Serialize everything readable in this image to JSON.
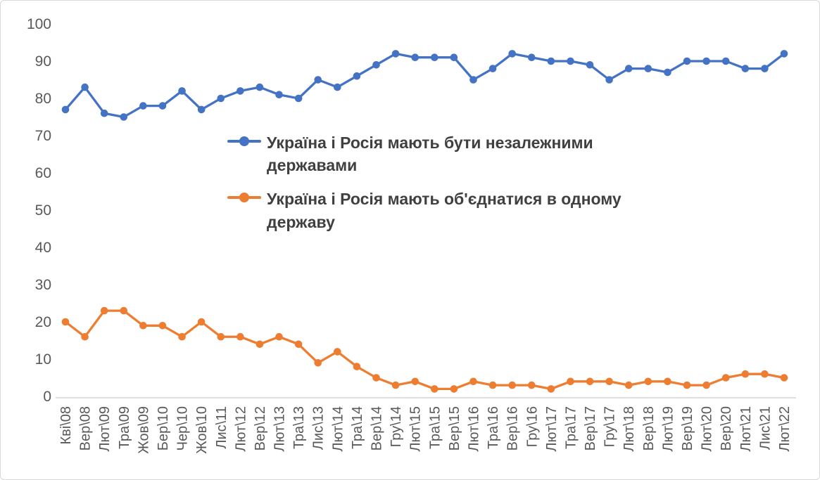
{
  "chart_data": {
    "type": "line",
    "title": "",
    "xlabel": "",
    "ylabel": "",
    "ylim": [
      0,
      100
    ],
    "ytick_step": 10,
    "grid": false,
    "legend_position": "inside-upper-middle",
    "categories": [
      "Кві\\08",
      "Вер\\08",
      "Лют\\09",
      "Тра\\09",
      "Жов\\09",
      "Бер\\10",
      "Чер\\10",
      "Жов\\10",
      "Лис\\11",
      "Лют\\12",
      "Вер\\12",
      "Лют\\13",
      "Тра\\13",
      "Лис\\13",
      "Лют\\14",
      "Тра\\14",
      "Вер\\14",
      "Гру\\14",
      "Лют\\15",
      "Тра\\15",
      "Вер\\15",
      "Лют\\16",
      "Тра\\16",
      "Вер\\16",
      "Гру\\16",
      "Лют\\17",
      "Тра\\17",
      "Вер\\17",
      "Гру\\17",
      "Лют\\18",
      "Вер\\18",
      "Лют\\19",
      "Вер\\19",
      "Лют\\20",
      "Вер\\20",
      "Лют\\21",
      "Лис\\21",
      "Лют\\22"
    ],
    "series": [
      {
        "name": "Україна і Росія мають бути незалежними державами",
        "color": "#4472C4",
        "values": [
          77,
          83,
          76,
          75,
          78,
          78,
          82,
          77,
          80,
          82,
          83,
          81,
          80,
          85,
          83,
          86,
          89,
          92,
          91,
          91,
          91,
          85,
          88,
          92,
          91,
          90,
          90,
          89,
          85,
          88,
          88,
          87,
          90,
          90,
          90,
          88,
          88,
          92
        ]
      },
      {
        "name": "Україна і Росія мають об'єднатися в одному державу",
        "color": "#ED7D31",
        "values": [
          20,
          16,
          23,
          23,
          19,
          19,
          16,
          20,
          16,
          16,
          14,
          16,
          14,
          9,
          12,
          8,
          5,
          3,
          4,
          2,
          2,
          4,
          3,
          3,
          3,
          2,
          4,
          4,
          4,
          3,
          4,
          4,
          3,
          3,
          5,
          6,
          6,
          5
        ]
      }
    ]
  },
  "axis": {
    "y_ticks": [
      0,
      10,
      20,
      30,
      40,
      50,
      60,
      70,
      80,
      90,
      100
    ],
    "tick_color": "#595959",
    "axis_line_color": "#BFBFBF"
  }
}
